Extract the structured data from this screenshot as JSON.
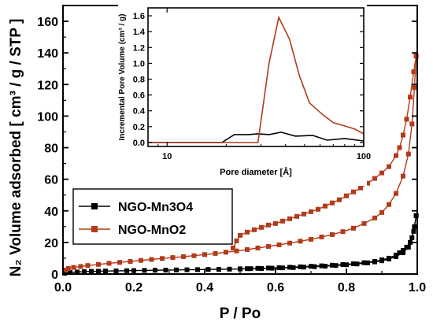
{
  "chart_data": [
    {
      "type": "scatter",
      "xlabel": "P / Po",
      "ylabel": "N₂ Volume adsorbed  [ cm³ / g / STP ]",
      "xlim": [
        0.0,
        1.0
      ],
      "ylim": [
        0,
        170
      ],
      "xticks": [
        "0.0",
        "0.2",
        "0.4",
        "0.6",
        "0.8",
        "1.0"
      ],
      "yticks": [
        "0",
        "20",
        "40",
        "60",
        "80",
        "100",
        "120",
        "140",
        "160"
      ],
      "legend_position": "middle-left",
      "series": [
        {
          "name": "NGO-Mn3O4",
          "color": "#000000",
          "marker": "square",
          "adsorption": [
            [
              0.005,
              0.5
            ],
            [
              0.02,
              1.0
            ],
            [
              0.04,
              1.3
            ],
            [
              0.06,
              1.5
            ],
            [
              0.08,
              1.7
            ],
            [
              0.1,
              1.8
            ],
            [
              0.12,
              1.9
            ],
            [
              0.15,
              2.0
            ],
            [
              0.18,
              2.1
            ],
            [
              0.2,
              2.2
            ],
            [
              0.23,
              2.3
            ],
            [
              0.26,
              2.4
            ],
            [
              0.29,
              2.5
            ],
            [
              0.32,
              2.6
            ],
            [
              0.35,
              2.7
            ],
            [
              0.38,
              2.8
            ],
            [
              0.41,
              2.9
            ],
            [
              0.44,
              3.0
            ],
            [
              0.47,
              3.1
            ],
            [
              0.5,
              3.2
            ],
            [
              0.53,
              3.4
            ],
            [
              0.56,
              3.5
            ],
            [
              0.59,
              3.7
            ],
            [
              0.62,
              3.9
            ],
            [
              0.65,
              4.1
            ],
            [
              0.68,
              4.4
            ],
            [
              0.71,
              4.7
            ],
            [
              0.74,
              5.0
            ],
            [
              0.77,
              5.4
            ],
            [
              0.8,
              5.9
            ],
            [
              0.83,
              6.4
            ],
            [
              0.86,
              7.1
            ],
            [
              0.88,
              7.7
            ],
            [
              0.9,
              8.4
            ],
            [
              0.92,
              9.5
            ],
            [
              0.94,
              11.0
            ],
            [
              0.96,
              13.5
            ],
            [
              0.975,
              17.0
            ],
            [
              0.985,
              23.0
            ],
            [
              0.992,
              30.0
            ],
            [
              0.997,
              37.0
            ]
          ],
          "desorption": [
            [
              0.997,
              37.0
            ],
            [
              0.99,
              27.0
            ],
            [
              0.98,
              20.0
            ],
            [
              0.97,
              17.0
            ],
            [
              0.96,
              15.0
            ],
            [
              0.95,
              13.5
            ],
            [
              0.94,
              12.0
            ],
            [
              0.92,
              10.0
            ],
            [
              0.9,
              9.0
            ],
            [
              0.88,
              8.0
            ],
            [
              0.85,
              7.2
            ],
            [
              0.82,
              6.5
            ],
            [
              0.79,
              6.0
            ],
            [
              0.76,
              5.6
            ],
            [
              0.73,
              5.2
            ],
            [
              0.7,
              4.9
            ],
            [
              0.67,
              4.6
            ],
            [
              0.64,
              4.3
            ],
            [
              0.61,
              4.0
            ],
            [
              0.58,
              3.8
            ],
            [
              0.55,
              3.6
            ],
            [
              0.52,
              3.4
            ],
            [
              0.5,
              3.3
            ]
          ]
        },
        {
          "name": "NGO-MnO2",
          "color": "#b33a1a",
          "marker": "square",
          "adsorption": [
            [
              0.005,
              2.5
            ],
            [
              0.015,
              3.5
            ],
            [
              0.03,
              4.2
            ],
            [
              0.05,
              4.8
            ],
            [
              0.07,
              5.4
            ],
            [
              0.1,
              6.1
            ],
            [
              0.13,
              6.8
            ],
            [
              0.16,
              7.4
            ],
            [
              0.19,
              8.0
            ],
            [
              0.22,
              8.6
            ],
            [
              0.25,
              9.2
            ],
            [
              0.28,
              9.8
            ],
            [
              0.31,
              10.4
            ],
            [
              0.34,
              11.0
            ],
            [
              0.37,
              11.6
            ],
            [
              0.4,
              12.3
            ],
            [
              0.43,
              13.0
            ],
            [
              0.46,
              13.8
            ],
            [
              0.49,
              14.6
            ],
            [
              0.52,
              15.5
            ],
            [
              0.55,
              16.5
            ],
            [
              0.58,
              17.5
            ],
            [
              0.61,
              18.5
            ],
            [
              0.64,
              19.6
            ],
            [
              0.67,
              20.8
            ],
            [
              0.7,
              22.0
            ],
            [
              0.73,
              23.5
            ],
            [
              0.76,
              25.0
            ],
            [
              0.79,
              26.8
            ],
            [
              0.82,
              29.0
            ],
            [
              0.85,
              32.0
            ],
            [
              0.88,
              35.5
            ],
            [
              0.9,
              39.0
            ],
            [
              0.92,
              44.0
            ],
            [
              0.94,
              51.0
            ],
            [
              0.96,
              62.0
            ],
            [
              0.975,
              76.0
            ],
            [
              0.985,
              95.0
            ],
            [
              0.992,
              118.0
            ],
            [
              0.997,
              138.0
            ]
          ],
          "desorption": [
            [
              0.997,
              138.0
            ],
            [
              0.99,
              128.0
            ],
            [
              0.98,
              112.0
            ],
            [
              0.97,
              98.0
            ],
            [
              0.96,
              88.0
            ],
            [
              0.95,
              80.0
            ],
            [
              0.94,
              75.0
            ],
            [
              0.92,
              68.0
            ],
            [
              0.9,
              64.0
            ],
            [
              0.88,
              60.5
            ],
            [
              0.86,
              57.5
            ],
            [
              0.84,
              54.5
            ],
            [
              0.82,
              52.0
            ],
            [
              0.8,
              49.5
            ],
            [
              0.78,
              47.0
            ],
            [
              0.76,
              45.0
            ],
            [
              0.74,
              43.0
            ],
            [
              0.72,
              41.0
            ],
            [
              0.7,
              39.5
            ],
            [
              0.68,
              38.0
            ],
            [
              0.66,
              36.5
            ],
            [
              0.64,
              35.0
            ],
            [
              0.62,
              33.5
            ],
            [
              0.6,
              32.0
            ],
            [
              0.58,
              31.0
            ],
            [
              0.56,
              29.5
            ],
            [
              0.54,
              28.0
            ],
            [
              0.52,
              26.5
            ],
            [
              0.5,
              24.5
            ],
            [
              0.49,
              21.0
            ],
            [
              0.48,
              16.5
            ]
          ]
        }
      ]
    },
    {
      "type": "line",
      "xlabel": "Pore diameter [Å]",
      "ylabel": "Incremental Pore Volume (cm³ / g)",
      "xscale": "log",
      "xlim": [
        8,
        100
      ],
      "ylim": [
        -0.05,
        1.7
      ],
      "xticks": [
        "10",
        "100"
      ],
      "yticks": [
        "0.0",
        "0.2",
        "0.4",
        "0.6",
        "0.8",
        "1.0",
        "1.2",
        "1.4",
        "1.6"
      ],
      "series": [
        {
          "name": "NGO-Mn3O4",
          "color": "#000000",
          "points": [
            [
              8,
              0.0
            ],
            [
              16,
              0.0
            ],
            [
              19,
              0.0
            ],
            [
              22,
              0.1
            ],
            [
              26,
              0.1
            ],
            [
              29,
              0.11
            ],
            [
              33,
              0.1
            ],
            [
              38,
              0.13
            ],
            [
              45,
              0.08
            ],
            [
              55,
              0.09
            ],
            [
              65,
              0.03
            ],
            [
              80,
              0.05
            ],
            [
              100,
              0.02
            ]
          ]
        },
        {
          "name": "NGO-MnO2",
          "color": "#b33a1a",
          "points": [
            [
              8,
              0.0
            ],
            [
              25,
              0.0
            ],
            [
              29,
              0.0
            ],
            [
              33,
              1.0
            ],
            [
              37,
              1.58
            ],
            [
              42,
              1.3
            ],
            [
              47,
              0.85
            ],
            [
              53,
              0.5
            ],
            [
              62,
              0.35
            ],
            [
              70,
              0.25
            ],
            [
              80,
              0.21
            ],
            [
              90,
              0.17
            ],
            [
              100,
              0.11
            ]
          ]
        }
      ]
    }
  ]
}
